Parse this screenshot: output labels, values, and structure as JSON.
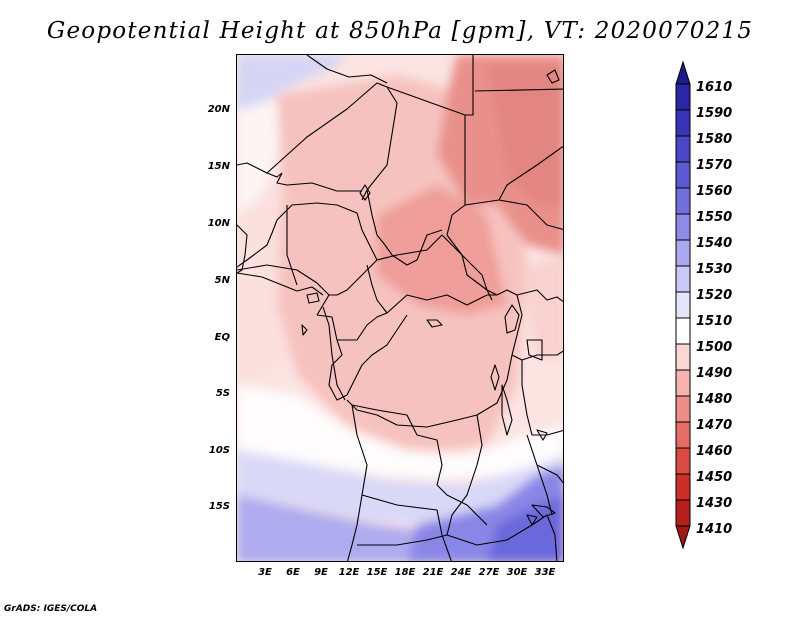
{
  "title": "Geopotential Height at 850hPa [gpm], VT: 2020070215",
  "credit": "GrADS: IGES/COLA",
  "map": {
    "y_axis_labels": [
      "20N",
      "15N",
      "10N",
      "5N",
      "EQ",
      "5S",
      "10S",
      "15S"
    ],
    "x_axis_labels": [
      "3E",
      "6E",
      "9E",
      "12E",
      "15E",
      "18E",
      "21E",
      "24E",
      "27E",
      "30E",
      "33E"
    ]
  },
  "legend": {
    "levels": [
      "1610",
      "1590",
      "1580",
      "1570",
      "1560",
      "1550",
      "1540",
      "1530",
      "1520",
      "1510",
      "1500",
      "1490",
      "1480",
      "1470",
      "1460",
      "1450",
      "1430",
      "1410"
    ],
    "colors": [
      "#1e1a8c",
      "#2a26a6",
      "#3734b8",
      "#4a48c6",
      "#5c5ad2",
      "#7370de",
      "#8d8ae8",
      "#aaa8f0",
      "#c9c8f6",
      "#e4e4fa",
      "#ffffff",
      "#fbd7d4",
      "#f5b4b0",
      "#ee8e88",
      "#e66c66",
      "#dc4a44",
      "#cc2f2a",
      "#b5201d",
      "#9e1816"
    ]
  }
}
